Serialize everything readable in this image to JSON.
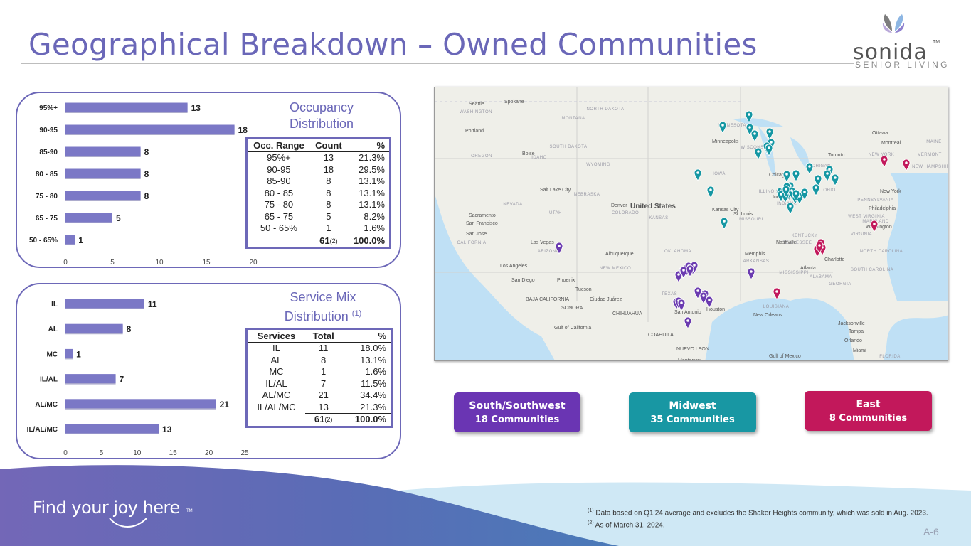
{
  "header": {
    "title": "Geographical Breakdown – Owned Communities"
  },
  "logo": {
    "word": "sonida",
    "tm": "TM",
    "sub": "SENIOR LIVING"
  },
  "occupancy": {
    "title": "Occupancy Distribution",
    "table": {
      "headers": [
        "Occ. Range",
        "Count",
        "%"
      ],
      "rows": [
        [
          "95%+",
          "13",
          "21.3%"
        ],
        [
          "90-95",
          "18",
          "29.5%"
        ],
        [
          "85-90",
          "8",
          "13.1%"
        ],
        [
          "80 - 85",
          "8",
          "13.1%"
        ],
        [
          "75 - 80",
          "8",
          "13.1%"
        ],
        [
          "65 - 75",
          "5",
          "8.2%"
        ],
        [
          "50 - 65%",
          "1",
          "1.6%"
        ]
      ],
      "total_count": "61",
      "total_note": "(2)",
      "total_pct": "100.0%"
    }
  },
  "service_mix": {
    "title": "Service Mix Distribution",
    "title_note": "(1)",
    "table": {
      "headers": [
        "Services",
        "Total",
        "%"
      ],
      "rows": [
        [
          "IL",
          "11",
          "18.0%"
        ],
        [
          "AL",
          "8",
          "13.1%"
        ],
        [
          "MC",
          "1",
          "1.6%"
        ],
        [
          "IL/AL",
          "7",
          "11.5%"
        ],
        [
          "AL/MC",
          "21",
          "34.4%"
        ],
        [
          "IL/AL/MC",
          "13",
          "21.3%"
        ]
      ],
      "total_count": "61",
      "total_note": "(2)",
      "total_pct": "100.0%"
    }
  },
  "chart_data": [
    {
      "type": "bar",
      "orientation": "horizontal",
      "categories": [
        "95%+",
        "90-95",
        "85-90",
        "80 - 85",
        "75 - 80",
        "65 - 75",
        "50 - 65%"
      ],
      "values": [
        13,
        18,
        8,
        8,
        8,
        5,
        1
      ],
      "xlim": [
        0,
        20
      ],
      "xticks": [
        0,
        5,
        10,
        15,
        20
      ],
      "bar_color": "#7b78c6"
    },
    {
      "type": "bar",
      "orientation": "horizontal",
      "categories": [
        "IL",
        "AL",
        "MC",
        "IL/AL",
        "AL/MC",
        "IL/AL/MC"
      ],
      "values": [
        11,
        8,
        1,
        7,
        21,
        13
      ],
      "xlim": [
        0,
        25
      ],
      "xticks": [
        0,
        5,
        10,
        15,
        20,
        25
      ],
      "bar_color": "#7b78c6"
    }
  ],
  "map": {
    "title": "United States",
    "colors": {
      "south": "#6b3bb0",
      "midwest": "#1597a3",
      "east": "#c2185b"
    },
    "states": [
      "NORTH DAKOTA",
      "SOUTH DAKOTA",
      "NEBRASKA",
      "KANSAS",
      "OKLAHOMA",
      "TEXAS",
      "NEW MEXICO",
      "ARIZONA",
      "NEVADA",
      "UTAH",
      "COLORADO",
      "WYOMING",
      "MONTANA",
      "IDAHO",
      "OREGON",
      "WASHINGTON",
      "CALIFORNIA",
      "MINNESOTA",
      "IOWA",
      "MISSOURI",
      "ARKANSAS",
      "LOUISIANA",
      "MISSISSIPPI",
      "ALABAMA",
      "GEORGIA",
      "TENNESSEE",
      "KENTUCKY",
      "ILLINOIS",
      "INDIANA",
      "OHIO",
      "MICHIGAN",
      "WISCONSIN",
      "PENNSYLVANIA",
      "NEW YORK",
      "VIRGINIA",
      "WEST VIRGINIA",
      "NORTH CAROLINA",
      "SOUTH CAROLINA",
      "FLORIDA",
      "MAINE",
      "VERMONT",
      "NEW HAMPSHIRE",
      "MARYLAND"
    ],
    "cities": [
      "Seattle",
      "Spokane",
      "Portland",
      "Boise",
      "Sacramento",
      "San Francisco",
      "San Jose",
      "Las Vegas",
      "Los Angeles",
      "San Diego",
      "Phoenix",
      "Tucson",
      "Albuquerque",
      "Denver",
      "Salt Lake City",
      "Minneapolis",
      "Kansas City",
      "St. Louis",
      "Chicago",
      "Indianapolis",
      "Nashville",
      "Memphis",
      "Atlanta",
      "Charlotte",
      "Washington",
      "Philadelphia",
      "New York",
      "Toronto",
      "Ottawa",
      "Montreal",
      "Jacksonville",
      "Orlando",
      "Tampa",
      "Miami",
      "San Antonio",
      "Houston",
      "New Orleans",
      "Ciudad Juárez",
      "Monterrey",
      "Gulf of California",
      "Gulf of Mexico",
      "BAJA CALIFORNIA",
      "SONORA",
      "CHIHUAHUA",
      "COAHUILA",
      "NUEVO LEON"
    ]
  },
  "regions": [
    {
      "name": "South/Southwest",
      "count": "18 Communities",
      "color": "#6a35b3"
    },
    {
      "name": "Midwest",
      "count": "35 Communities",
      "color": "#1897a3"
    },
    {
      "name": "East",
      "count": "8 Communities",
      "color": "#c2185b"
    }
  ],
  "footer": {
    "tagline": "Find your joy here",
    "tagline_tm": "TM",
    "note1_mark": "(1)",
    "note1": "Data based on Q1’24 average and excludes the Shaker Heights community, which was sold in Aug. 2023.",
    "note2_mark": "(2)",
    "note2": "As of March 31, 2024.",
    "page": "A-6"
  }
}
